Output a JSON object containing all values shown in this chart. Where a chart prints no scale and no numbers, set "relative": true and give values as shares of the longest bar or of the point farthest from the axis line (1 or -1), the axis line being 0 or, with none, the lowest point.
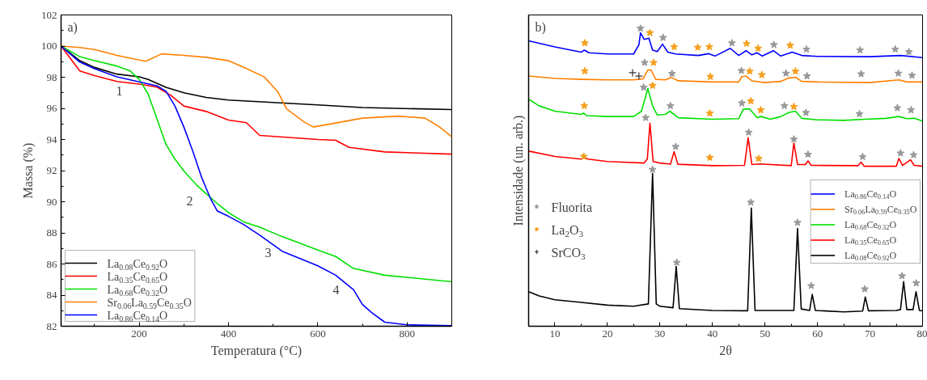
{
  "chart_data": [
    {
      "type": "line",
      "xlabel": "Temperatura (°C)",
      "ylabel": "Massa (%)",
      "xlim": [
        25,
        900
      ],
      "ylim": [
        82,
        102
      ],
      "xticks": [
        {
          "value": 100,
          "label": null
        },
        200,
        {
          "value": 300,
          "label": null
        },
        400,
        {
          "value": 500,
          "label": null
        },
        600,
        {
          "value": 700,
          "label": null
        },
        800
      ],
      "yticks": [
        82,
        {
          "value": 83,
          "label": null
        },
        84,
        {
          "value": 85,
          "label": null
        },
        86,
        {
          "value": 87,
          "label": null
        },
        88,
        {
          "value": 89,
          "label": null
        },
        90,
        {
          "value": 91,
          "label": null
        },
        92,
        {
          "value": 93,
          "label": null
        },
        94,
        {
          "value": 95,
          "label": null
        },
        96,
        {
          "value": 97,
          "label": null
        },
        98,
        {
          "value": 99,
          "label": null
        },
        100,
        {
          "value": 101,
          "label": null
        },
        102
      ],
      "legend": "bottom left",
      "annotations": [
        "a)",
        "1",
        "2",
        "3",
        "4"
      ],
      "series": [
        {
          "name": "La$_{0.08}$Ce$_{0.92}$O",
          "color": "#000000",
          "x": [
            25,
            67,
            100,
            150,
            200,
            220,
            260,
            300,
            350,
            400,
            600,
            700,
            900
          ],
          "values": [
            100,
            99.06,
            98.63,
            98.2,
            98.03,
            97.86,
            97.35,
            97.0,
            96.7,
            96.53,
            96.22,
            96.05,
            95.92
          ]
        },
        {
          "name": "La$_{0.35}$Ce$_{0.65}$O",
          "color": "#ff0000",
          "x": [
            25,
            67,
            100,
            150,
            200,
            240,
            270,
            300,
            350,
            400,
            440,
            470,
            600,
            640,
            670,
            750,
            900
          ],
          "values": [
            100,
            98.4,
            98.1,
            97.73,
            97.56,
            97.36,
            96.85,
            96.15,
            95.8,
            95.25,
            95.08,
            94.26,
            94.0,
            93.95,
            93.49,
            93.2,
            93.06
          ]
        },
        {
          "name": "La$_{0.68}$Ce$_{0.32}$O",
          "color": "#00e000",
          "x": [
            25,
            67,
            100,
            150,
            180,
            200,
            220,
            240,
            260,
            280,
            300,
            330,
            370,
            400,
            433,
            470,
            520,
            600,
            640,
            680,
            750,
            900
          ],
          "values": [
            100,
            99.32,
            99.06,
            98.72,
            98.4,
            97.86,
            96.92,
            95.3,
            93.68,
            92.74,
            91.97,
            91.03,
            90.0,
            89.3,
            88.72,
            88.36,
            87.76,
            86.9,
            86.48,
            85.71,
            85.28,
            84.86
          ]
        },
        {
          "name": "Sr$_{0.06}$La$_{0.59}$Ce$_{0.35}$O",
          "color": "#ff8000",
          "x": [
            25,
            67,
            100,
            150,
            200,
            215,
            250,
            300,
            350,
            400,
            440,
            480,
            510,
            530,
            570,
            590,
            650,
            700,
            780,
            840,
            870,
            900
          ],
          "values": [
            100,
            99.91,
            99.78,
            99.4,
            99.1,
            99.03,
            99.5,
            99.4,
            99.28,
            99.06,
            98.56,
            98.02,
            97.08,
            95.97,
            95.11,
            94.8,
            95.11,
            95.37,
            95.5,
            95.37,
            94.86,
            94.17
          ]
        },
        {
          "name": "La$_{0.86}$Ce$_{0.14}$O",
          "color": "#0000ff",
          "x": [
            25,
            67,
            100,
            150,
            200,
            240,
            260,
            280,
            300,
            320,
            340,
            360,
            375,
            400,
            433,
            470,
            520,
            600,
            640,
            680,
            700,
            720,
            750,
            800,
            900
          ],
          "values": [
            100,
            98.97,
            98.55,
            98.03,
            97.7,
            97.44,
            97.1,
            96.15,
            94.8,
            93.25,
            91.55,
            90.18,
            89.4,
            89.06,
            88.55,
            87.85,
            86.82,
            85.88,
            85.28,
            84.34,
            83.4,
            82.89,
            82.26,
            82.09,
            82.04
          ]
        }
      ]
    },
    {
      "type": "line",
      "relative": true,
      "xlabel": "2θ",
      "ylabel": "Intensidade (un. arb.)",
      "xlim": [
        5,
        80
      ],
      "xticks": [
        {
          "value": 5,
          "label": null
        },
        10,
        {
          "value": 15,
          "label": null
        },
        20,
        {
          "value": 25,
          "label": null
        },
        30,
        {
          "value": 35,
          "label": null
        },
        40,
        {
          "value": 45,
          "label": null
        },
        50,
        {
          "value": 55,
          "label": null
        },
        60,
        {
          "value": 65,
          "label": null
        },
        70,
        {
          "value": 75,
          "label": null
        },
        80
      ],
      "legend": "right",
      "annotations": [
        "b)"
      ],
      "series": [
        {
          "name": "La$_{0.86}$Ce$_{0.14}$O",
          "color": "#0000ff",
          "x": [
            5,
            10,
            15,
            15.6,
            16.5,
            20,
            25,
            26.0,
            26.3,
            27.0,
            27.9,
            28.6,
            29.5,
            30.5,
            31.5,
            33,
            37.3,
            39.3,
            40.5,
            43.4,
            45,
            46.4,
            47.5,
            48.5,
            49.5,
            51.6,
            53,
            55.2,
            57,
            60,
            70,
            75.8,
            80
          ],
          "values": [
            0.958,
            0.938,
            0.92,
            0.927,
            0.918,
            0.914,
            0.914,
            0.945,
            0.985,
            0.963,
            0.967,
            0.927,
            0.922,
            0.947,
            0.92,
            0.914,
            0.909,
            0.915,
            0.907,
            0.933,
            0.909,
            0.925,
            0.911,
            0.918,
            0.907,
            0.925,
            0.907,
            0.92,
            0.909,
            0.906,
            0.905,
            0.909,
            0.902
          ]
        },
        {
          "name": "Sr$_{0.06}$La$_{0.59}$Ce$_{0.35}$O",
          "color": "#ff8000",
          "x": [
            5,
            10,
            15,
            20,
            25,
            26.8,
            27.7,
            28.3,
            29.2,
            31,
            32.2,
            33.5,
            40,
            45,
            45.6,
            46.4,
            47.5,
            50,
            53,
            54.5,
            55.8,
            57,
            60,
            70,
            75.5,
            77,
            80
          ],
          "values": [
            0.84,
            0.832,
            0.829,
            0.827,
            0.827,
            0.831,
            0.86,
            0.86,
            0.829,
            0.827,
            0.835,
            0.824,
            0.82,
            0.82,
            0.838,
            0.84,
            0.824,
            0.818,
            0.822,
            0.833,
            0.836,
            0.822,
            0.82,
            0.818,
            0.827,
            0.82,
            0.82
          ]
        },
        {
          "name": "La$_{0.68}$Ce$_{0.32}$O",
          "color": "#00e000",
          "x": [
            5,
            7,
            10,
            15,
            15.5,
            16,
            20,
            25,
            26.5,
            27.7,
            28.6,
            29.5,
            31,
            31.9,
            33.5,
            40,
            45,
            45.9,
            47.1,
            48.5,
            49.3,
            51,
            53,
            54.5,
            55.8,
            57,
            60,
            65,
            69,
            73,
            75.5,
            77,
            78.5,
            80
          ],
          "values": [
            0.762,
            0.74,
            0.722,
            0.711,
            0.716,
            0.707,
            0.704,
            0.704,
            0.722,
            0.798,
            0.74,
            0.709,
            0.711,
            0.722,
            0.7,
            0.695,
            0.697,
            0.729,
            0.729,
            0.7,
            0.704,
            0.695,
            0.704,
            0.717,
            0.722,
            0.698,
            0.693,
            0.691,
            0.695,
            0.698,
            0.704,
            0.697,
            0.698,
            0.689
          ]
        },
        {
          "name": "La$_{0.35}$Ce$_{0.65}$O",
          "color": "#ff0000",
          "x": [
            5,
            10,
            15,
            15.6,
            16.3,
            20,
            27,
            27.6,
            28.1,
            28.7,
            30,
            32,
            32.7,
            33.4,
            40,
            46.1,
            46.8,
            47.5,
            49,
            55,
            55.5,
            56.2,
            57.7,
            58.2,
            58.8,
            67.7,
            68.3,
            68.9,
            75,
            75.5,
            76.2,
            77.7,
            78.4,
            80
          ],
          "values": [
            0.588,
            0.57,
            0.561,
            0.567,
            0.561,
            0.553,
            0.548,
            0.561,
            0.682,
            0.553,
            0.548,
            0.544,
            0.586,
            0.544,
            0.539,
            0.54,
            0.633,
            0.543,
            0.545,
            0.539,
            0.615,
            0.543,
            0.543,
            0.555,
            0.54,
            0.539,
            0.551,
            0.537,
            0.537,
            0.563,
            0.54,
            0.559,
            0.54,
            0.537
          ]
        },
        {
          "name": "La$_{0.08}$Ce$_{0.92}$O",
          "color": "#000000",
          "x": [
            5,
            7,
            10,
            15,
            20,
            25,
            27.8,
            28.6,
            29.3,
            30,
            32.5,
            33.1,
            33.7,
            40,
            46.7,
            47.4,
            48.1,
            55.5,
            56.2,
            56.9,
            58.5,
            59.0,
            59.6,
            65,
            68.6,
            69.1,
            69.7,
            75,
            75.8,
            76.4,
            77.0,
            78.2,
            78.75,
            79.4,
            80
          ],
          "values": [
            0.116,
            0.102,
            0.089,
            0.08,
            0.071,
            0.067,
            0.075,
            0.513,
            0.075,
            0.067,
            0.062,
            0.201,
            0.059,
            0.053,
            0.052,
            0.397,
            0.053,
            0.053,
            0.328,
            0.058,
            0.053,
            0.107,
            0.053,
            0.048,
            0.051,
            0.098,
            0.052,
            0.053,
            0.056,
            0.15,
            0.056,
            0.056,
            0.116,
            0.053,
            0.052
          ]
        },
        {
          "name": "Fluorita",
          "type": "scatter",
          "marker": "star",
          "color": "#999999",
          "x": [
            26.3,
            30.6,
            43.7,
            51.7,
            57.9,
            68.1,
            74.8,
            77.4,
            27.1,
            32.3,
            45.5,
            54.0,
            58.0,
            68.3,
            75.4,
            78.0,
            26.9,
            32.0,
            45.6,
            53.7,
            57.8,
            68.0,
            75.2,
            77.8,
            27.3,
            33.0,
            46.9,
            55.5,
            58.2,
            68.6,
            75.8,
            78.3,
            28.6,
            33.2,
            47.3,
            56.2,
            58.8,
            69.0,
            76.1,
            78.8
          ],
          "values": [
            1.0,
            0.969,
            0.951,
            0.945,
            0.93,
            0.927,
            0.93,
            0.921,
            0.885,
            0.848,
            0.858,
            0.849,
            0.84,
            0.847,
            0.849,
            0.842,
            0.802,
            0.74,
            0.749,
            0.74,
            0.717,
            0.713,
            0.733,
            0.726,
            0.7,
            0.603,
            0.651,
            0.628,
            0.577,
            0.569,
            0.581,
            0.575,
            0.526,
            0.214,
            0.416,
            0.348,
            0.136,
            0.125,
            0.169,
            0.145
          ]
        },
        {
          "name": "La$_{2}$O$_{3}$",
          "type": "scatter",
          "marker": "star",
          "color": "#f5a020",
          "x": [
            15.7,
            28.1,
            32.7,
            37.2,
            39.4,
            46.5,
            48.7,
            54.8,
            15.7,
            28.8,
            39.6,
            47.1,
            49.4,
            55.8,
            15.6,
            28.6,
            39.5,
            47.3,
            49.2,
            55.5,
            15.5,
            39.5,
            48.8
          ],
          "values": [
            0.951,
            0.985,
            0.938,
            0.936,
            0.938,
            0.949,
            0.933,
            0.943,
            0.857,
            0.885,
            0.838,
            0.856,
            0.844,
            0.856,
            0.74,
            0.808,
            0.715,
            0.756,
            0.726,
            0.737,
            0.57,
            0.566,
            0.563
          ]
        },
        {
          "name": "SrCO$_{3}$",
          "type": "scatter",
          "marker": "cross",
          "color": "#333333",
          "x": [
            24.8,
            26.0
          ],
          "values": [
            0.851,
            0.84
          ]
        }
      ]
    }
  ]
}
